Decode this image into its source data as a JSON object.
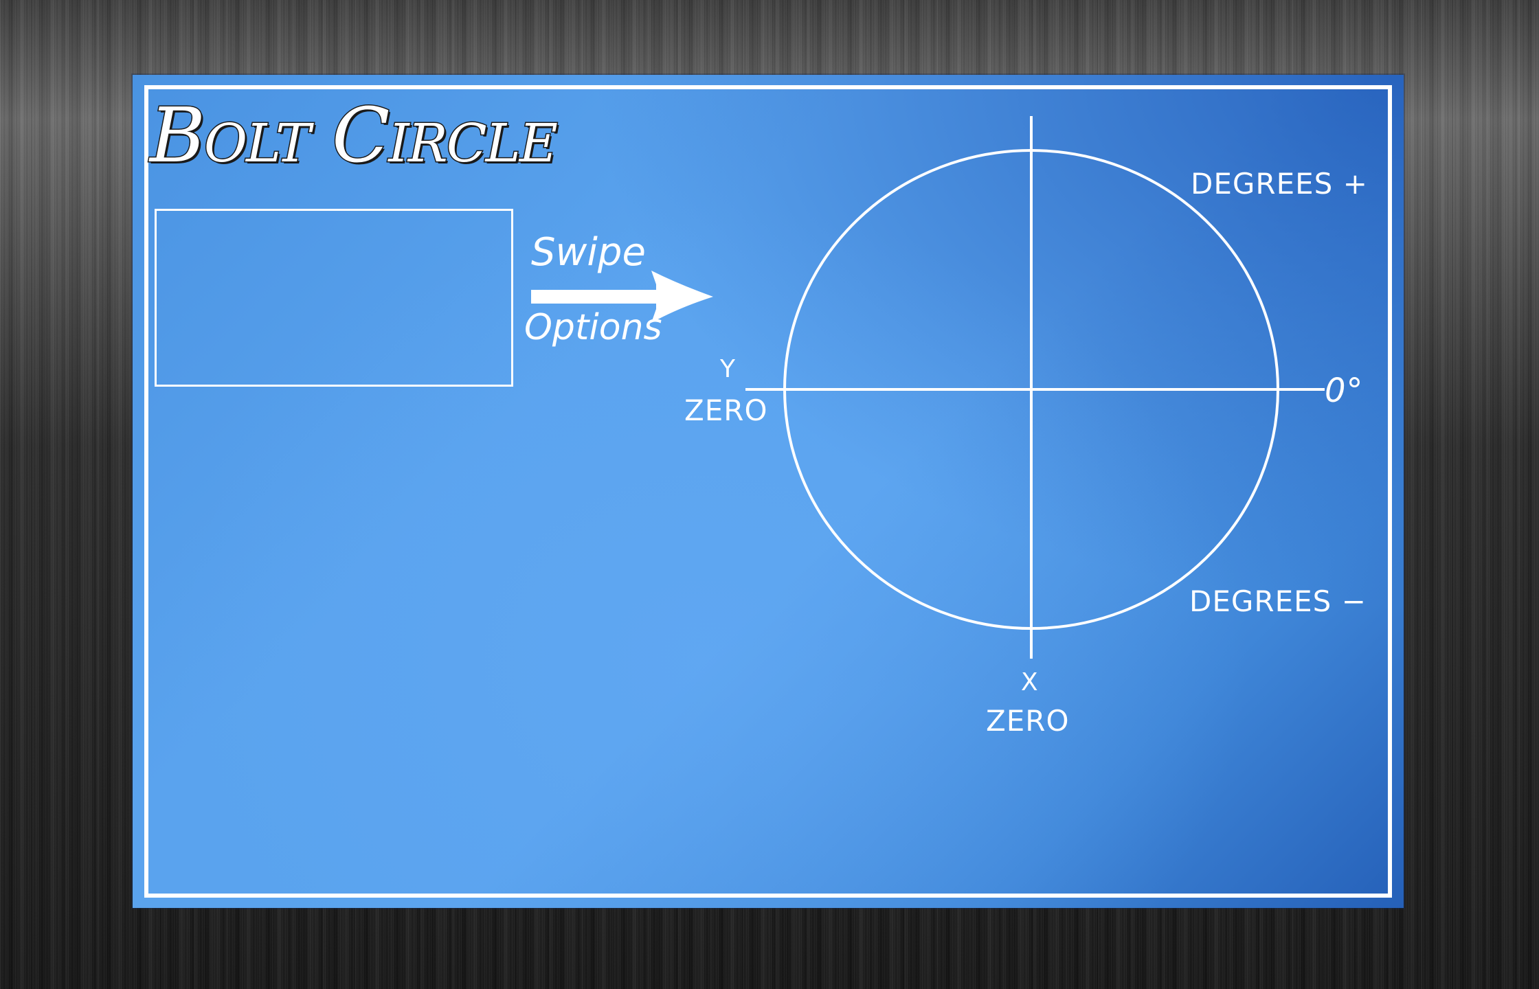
{
  "title": "Bolt Circle",
  "swipe_hint": {
    "top_label": "Swipe",
    "bottom_label": "Options"
  },
  "diagram": {
    "degrees_positive": "DEGREES +",
    "degrees_negative": "DEGREES −",
    "zero_degrees": "0°",
    "y_axis_letter": "Y",
    "y_zero": "ZERO",
    "x_axis_letter": "X",
    "x_zero": "ZERO"
  },
  "colors": {
    "panel_blue": "#5aa3ee",
    "panel_dark_blue": "#2560b8",
    "line_white": "#ffffff"
  }
}
